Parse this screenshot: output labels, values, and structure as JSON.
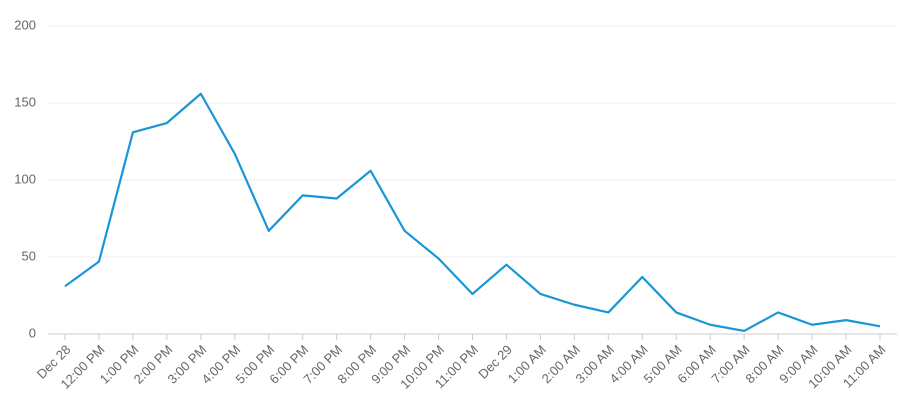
{
  "chart_data": {
    "type": "line",
    "categories": [
      "Dec 28",
      "12:00 PM",
      "1:00 PM",
      "2:00 PM",
      "3:00 PM",
      "4:00 PM",
      "5:00 PM",
      "6:00 PM",
      "7:00 PM",
      "8:00 PM",
      "9:00 PM",
      "10:00 PM",
      "11:00 PM",
      "Dec 29",
      "1:00 AM",
      "2:00 AM",
      "3:00 AM",
      "4:00 AM",
      "5:00 AM",
      "6:00 AM",
      "7:00 AM",
      "8:00 AM",
      "9:00 AM",
      "10:00 AM",
      "11:00 AM"
    ],
    "values": [
      31,
      47,
      131,
      137,
      156,
      117,
      67,
      90,
      88,
      106,
      67,
      49,
      26,
      45,
      26,
      19,
      14,
      37,
      14,
      6,
      2,
      14,
      6,
      9,
      5
    ],
    "color": "#1a96d6",
    "ylim": [
      0,
      200
    ],
    "yticks": [
      0,
      50,
      100,
      150,
      200
    ],
    "grid": true
  }
}
